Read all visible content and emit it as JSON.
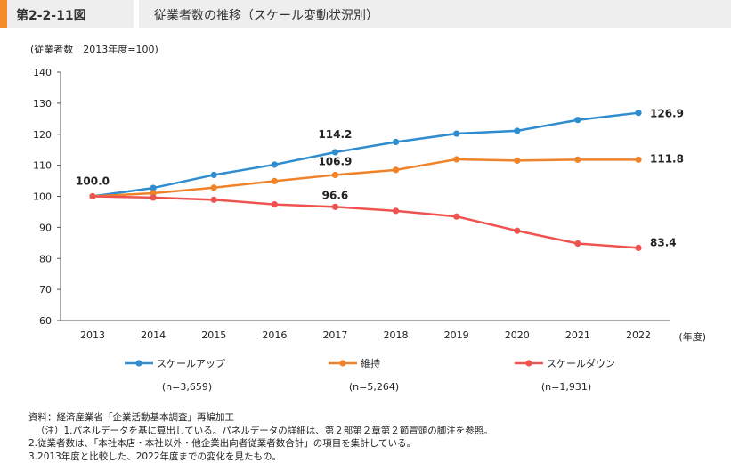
{
  "header": {
    "figure_no": "第2-2-11図",
    "title": "従業者数の推移（スケール変動状況別）"
  },
  "unit_label": "(従業者数　2013年度=100)",
  "chart_data": {
    "type": "line",
    "title": "従業者数の推移（スケール変動状況別）",
    "xlabel": "(年度)",
    "ylabel": "(従業者数　2013年度=100)",
    "ylim": [
      60,
      140
    ],
    "yticks": [
      "60",
      "70",
      "80",
      "90",
      "100",
      "110",
      "120",
      "130",
      "140"
    ],
    "x": [
      "2013",
      "2014",
      "2015",
      "2016",
      "2017",
      "2018",
      "2019",
      "2020",
      "2021",
      "2022"
    ],
    "series": [
      {
        "name": "スケールアップ",
        "n_label": "(n=3,659)",
        "color": "#2e8ccf",
        "values": [
          100.0,
          102.7,
          106.9,
          110.2,
          114.2,
          117.5,
          120.2,
          121.1,
          124.6,
          126.9
        ]
      },
      {
        "name": "維持",
        "n_label": "(n=5,264)",
        "color": "#f0822a",
        "values": [
          100.0,
          101.0,
          102.8,
          104.9,
          106.9,
          108.5,
          111.9,
          111.5,
          111.8,
          111.8
        ]
      },
      {
        "name": "スケールダウン",
        "n_label": "(n=1,931)",
        "color": "#ef5350",
        "values": [
          100.0,
          99.6,
          98.9,
          97.4,
          96.6,
          95.3,
          93.5,
          88.9,
          84.8,
          83.4
        ]
      }
    ],
    "annotations": [
      {
        "text": "100.0",
        "series": 0,
        "index": 0
      },
      {
        "text": "114.2",
        "series": 0,
        "index": 4
      },
      {
        "text": "106.9",
        "series": 1,
        "index": 4
      },
      {
        "text": "96.6",
        "series": 2,
        "index": 4
      },
      {
        "text": "126.9",
        "series": 0,
        "index": 9
      },
      {
        "text": "111.8",
        "series": 1,
        "index": 9
      },
      {
        "text": "83.4",
        "series": 2,
        "index": 9
      }
    ]
  },
  "notes": {
    "source": "資料：経済産業省「企業活動基本調査」再編加工",
    "note1": "（注）1.パネルデータを基に算出している。パネルデータの詳細は、第２部第２章第２節冒頭の脚注を参照。",
    "note2": "2.従業者数は、「本社本店・本社以外・他企業出向者従業者数合計」の項目を集計している。",
    "note3": "3.2013年度と比較した、2022年度までの変化を見たもの。"
  }
}
